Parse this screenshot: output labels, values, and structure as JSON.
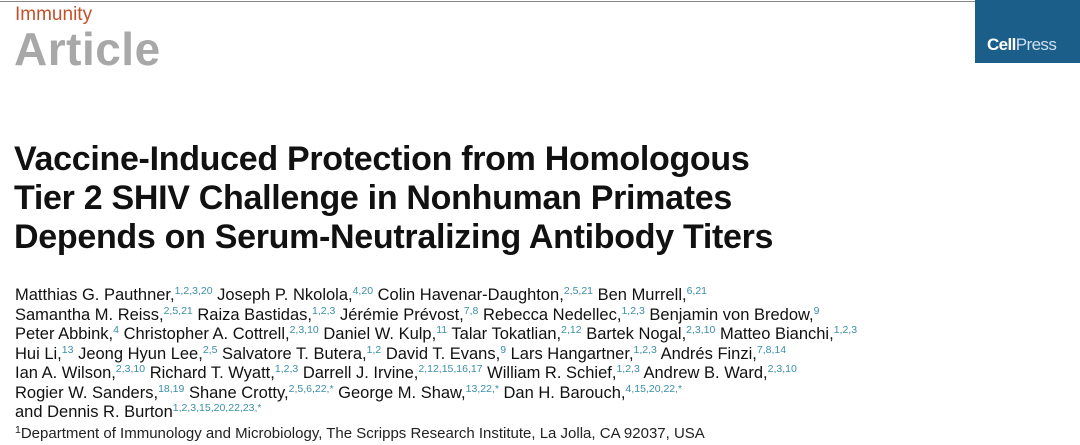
{
  "header": {
    "journal": "Immunity",
    "article_type": "Article",
    "publisher_logo": "CellPress",
    "logo_color": "#1b5e8a"
  },
  "title_lines": [
    "Vaccine-Induced Protection from Homologous",
    "Tier 2 SHIV Challenge in Nonhuman Primates",
    "Depends on Serum-Neutralizing Antibody Titers"
  ],
  "author_lines": [
    [
      {
        "name": "Matthias G. Pauthner,",
        "sup": "1,2,3,20"
      },
      {
        "name": "Joseph P. Nkolola,",
        "sup": "4,20"
      },
      {
        "name": "Colin Havenar-Daughton,",
        "sup": "2,5,21"
      },
      {
        "name": "Ben Murrell,",
        "sup": "6,21"
      }
    ],
    [
      {
        "name": "Samantha M. Reiss,",
        "sup": "2,5,21"
      },
      {
        "name": "Raiza Bastidas,",
        "sup": "1,2,3"
      },
      {
        "name": "Jérémie Prévost,",
        "sup": "7,8"
      },
      {
        "name": "Rebecca Nedellec,",
        "sup": "1,2,3"
      },
      {
        "name": "Benjamin von Bredow,",
        "sup": "9"
      }
    ],
    [
      {
        "name": "Peter Abbink,",
        "sup": "4"
      },
      {
        "name": "Christopher A. Cottrell,",
        "sup": "2,3,10"
      },
      {
        "name": "Daniel W. Kulp,",
        "sup": "11"
      },
      {
        "name": "Talar Tokatlian,",
        "sup": "2,12"
      },
      {
        "name": "Bartek Nogal,",
        "sup": "2,3,10"
      },
      {
        "name": "Matteo Bianchi,",
        "sup": "1,2,3"
      }
    ],
    [
      {
        "name": "Hui Li,",
        "sup": "13"
      },
      {
        "name": "Jeong Hyun Lee,",
        "sup": "2,5"
      },
      {
        "name": "Salvatore T. Butera,",
        "sup": "1,2"
      },
      {
        "name": "David T. Evans,",
        "sup": "9"
      },
      {
        "name": "Lars Hangartner,",
        "sup": "1,2,3"
      },
      {
        "name": "Andrés Finzi,",
        "sup": "7,8,14"
      }
    ],
    [
      {
        "name": "Ian A. Wilson,",
        "sup": "2,3,10"
      },
      {
        "name": "Richard T. Wyatt,",
        "sup": "1,2,3"
      },
      {
        "name": "Darrell J. Irvine,",
        "sup": "2,12,15,16,17"
      },
      {
        "name": "William R. Schief,",
        "sup": "1,2,3"
      },
      {
        "name": "Andrew B. Ward,",
        "sup": "2,3,10"
      }
    ],
    [
      {
        "name": "Rogier W. Sanders,",
        "sup": "18,19"
      },
      {
        "name": "Shane Crotty,",
        "sup": "2,5,6,22,*"
      },
      {
        "name": "George M. Shaw,",
        "sup": "13,22,*"
      },
      {
        "name": "Dan H. Barouch,",
        "sup": "4,15,20,22,*"
      }
    ],
    [
      {
        "name": "and Dennis R. Burton",
        "sup": "1,2,3,15,20,22,23,*"
      }
    ]
  ],
  "affiliation": {
    "sup": "1",
    "text": "Department of Immunology and Microbiology, The Scripps Research Institute, La Jolla, CA 92037, USA"
  }
}
